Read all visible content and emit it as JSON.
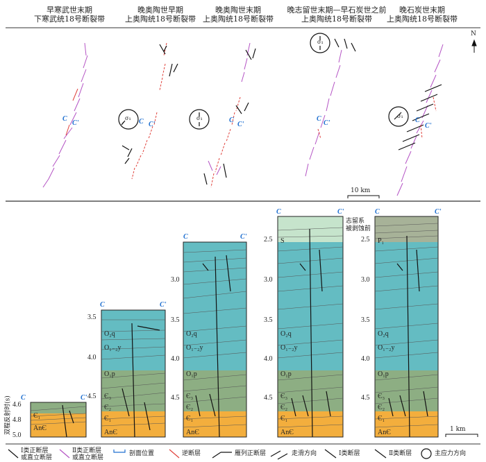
{
  "top_titles": [
    {
      "line1": "早寒武世末期",
      "line2": "下寒武统18号断裂带"
    },
    {
      "line1": "晚奥陶世早期",
      "line2": "上奥陶统18号断裂带"
    },
    {
      "line1": "晚奥陶世末期",
      "line2": "上奥陶统18号断裂带"
    },
    {
      "line1": "晚志留世末期—早石炭世之前",
      "line2": "上奥陶统18号断裂带"
    },
    {
      "line1": "晚石炭世末期",
      "line2": "上奥陶统18号断裂带"
    }
  ],
  "north_label": "N",
  "scale_top": "10 km",
  "scale_bottom": "1 km",
  "sigma_label": "σ₁",
  "section_C": "C",
  "section_Cp": "C'",
  "y_axis_label": "双程反射时(s)",
  "panel1_ticks": [
    "4.6",
    "4.8",
    "5.0"
  ],
  "panel2_ticks": [
    "3.5",
    "4.0",
    "4.5"
  ],
  "panel3_ticks": [
    "3.0",
    "3.5",
    "4.0",
    "4.5"
  ],
  "panel4_ticks": [
    "2.5",
    "3.0",
    "3.5",
    "4.0",
    "4.5"
  ],
  "panel5_ticks": [
    "2.5",
    "3.0",
    "3.5",
    "4.0",
    "4.5"
  ],
  "strata": {
    "anc": "AnЄ",
    "c1": "Є₁",
    "c2": "Є₂",
    "c3": "Є₃",
    "o1p": "O₁p",
    "o12y": "O₁₋₂y",
    "o2q": "O₂q",
    "s": "S",
    "p1": "P₁"
  },
  "erosion_note1": "志留系",
  "erosion_note2": "被剥蚀前",
  "legend": [
    {
      "l1": "Ⅰ类正断层",
      "l2": "或直立断层"
    },
    {
      "l1": "Ⅱ类正断层",
      "l2": "或直立断层"
    },
    {
      "l1": "剖面位置",
      "l2": ""
    },
    {
      "l1": "逆断层",
      "l2": ""
    },
    {
      "l1": "雁列正断层",
      "l2": ""
    },
    {
      "l1": "走滑方向",
      "l2": ""
    },
    {
      "l1": "Ⅰ类断层",
      "l2": ""
    },
    {
      "l1": "Ⅱ类断层",
      "l2": ""
    },
    {
      "l1": "主应力方向",
      "l2": ""
    }
  ],
  "colors": {
    "section_blue": "#1e6fd0",
    "teal": "#64bcc2",
    "green": "#8dae83",
    "orange": "#f3ae3d",
    "lightgreen": "#c6e4cc",
    "grayish": "#a7b298",
    "purple": "#b453c4",
    "red": "#e0403a"
  }
}
